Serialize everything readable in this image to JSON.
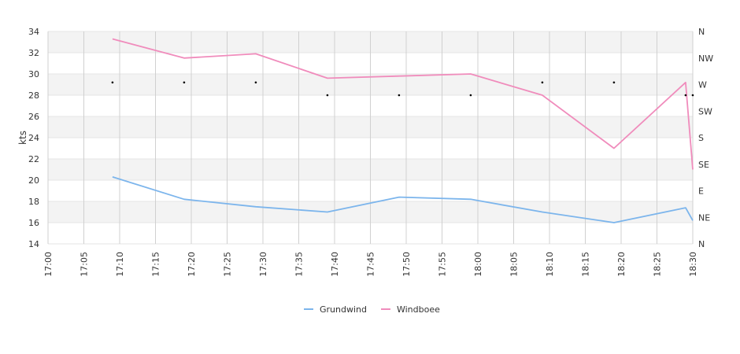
{
  "chart_data": {
    "type": "line",
    "title": "",
    "xlabel": "",
    "ylabel": "kts",
    "ylim": [
      14,
      34
    ],
    "y_ticks": [
      "14",
      "16",
      "18",
      "20",
      "22",
      "24",
      "26",
      "28",
      "30",
      "32",
      "34"
    ],
    "x_ticks": [
      "17:00",
      "17:05",
      "17:10",
      "17:15",
      "17:20",
      "17:25",
      "17:30",
      "17:35",
      "17:40",
      "17:45",
      "17:50",
      "17:55",
      "18:00",
      "18:05",
      "18:10",
      "18:15",
      "18:20",
      "18:25",
      "18:30"
    ],
    "right_axis_ticks": [
      "N",
      "NE",
      "E",
      "SE",
      "S",
      "SW",
      "W",
      "NW",
      "N"
    ],
    "grid": true,
    "legend_position": "bottom",
    "series": [
      {
        "name": "Grundwind",
        "color": "#7cb5ec",
        "x": [
          "17:09",
          "17:19",
          "17:29",
          "17:39",
          "17:49",
          "17:59",
          "18:09",
          "18:19",
          "18:29",
          "18:30"
        ],
        "values": [
          20.3,
          18.2,
          17.5,
          17.0,
          18.4,
          18.2,
          17.0,
          16.0,
          17.4,
          16.2
        ]
      },
      {
        "name": "Windboee",
        "color": "#f08cbc",
        "x": [
          "17:09",
          "17:19",
          "17:29",
          "17:39",
          "17:49",
          "17:59",
          "18:09",
          "18:19",
          "18:29",
          "18:30"
        ],
        "values": [
          33.3,
          31.5,
          31.9,
          29.6,
          29.8,
          30.0,
          28.0,
          23.0,
          29.2,
          21.0
        ]
      }
    ],
    "direction_markers": {
      "x": [
        "17:09",
        "17:19",
        "17:29",
        "17:39",
        "17:49",
        "17:59",
        "18:09",
        "18:19",
        "18:29",
        "18:30"
      ],
      "values": [
        29.2,
        29.2,
        29.2,
        28.0,
        28.0,
        28.0,
        29.2,
        29.2,
        28.0,
        28.0
      ]
    }
  }
}
